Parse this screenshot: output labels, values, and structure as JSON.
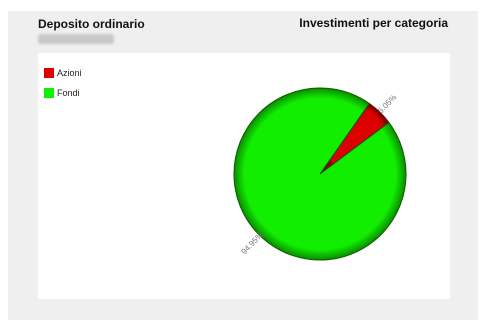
{
  "header": {
    "account_title": "Deposito ordinario",
    "chart_title": "Investimenti per categoria"
  },
  "chart_data": {
    "type": "pie",
    "title": "Investimenti per categoria",
    "categories": [
      "Azioni",
      "Fondi"
    ],
    "values": [
      5.05,
      94.95
    ],
    "labels": [
      "5.05%",
      "94.95%"
    ],
    "colors": [
      "#dd0000",
      "#11ee00"
    ],
    "legend_position": "top-left"
  }
}
